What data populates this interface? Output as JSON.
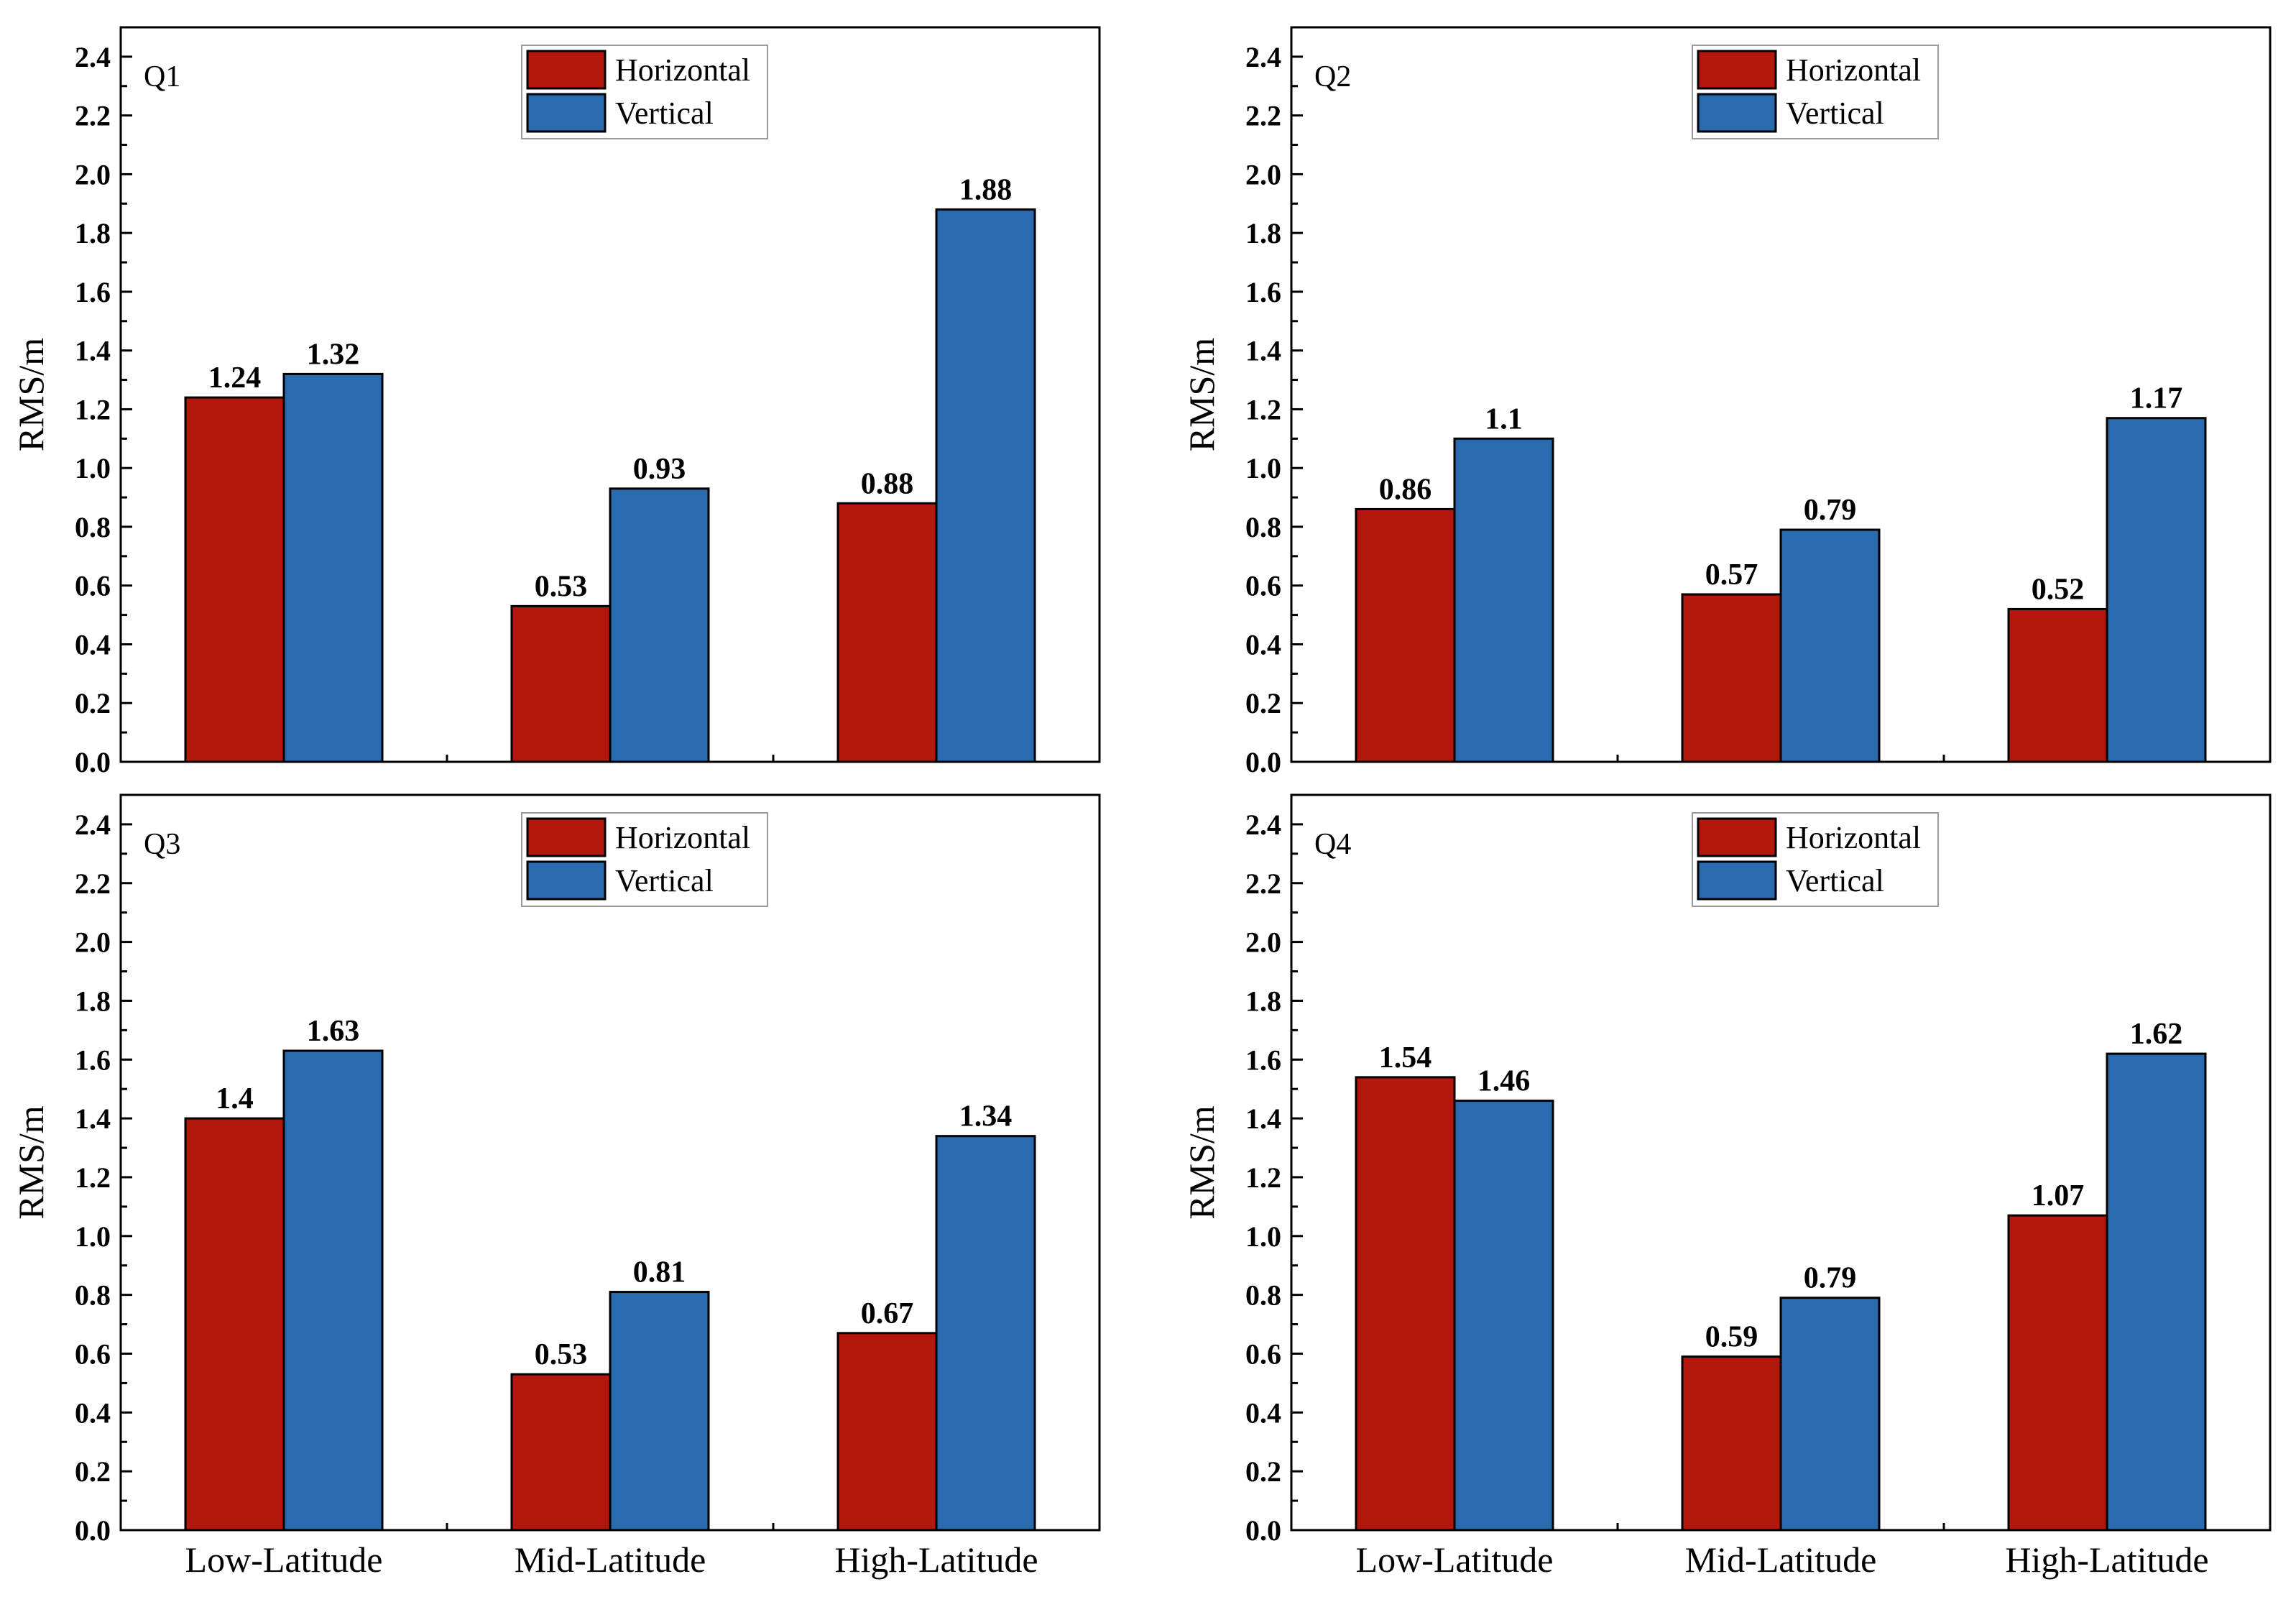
{
  "colors": {
    "horizontal": "#B3170D",
    "vertical": "#2A6AAE"
  },
  "chart_data": [
    {
      "type": "bar",
      "title": "Q1",
      "categories": [
        "Low-Latitude",
        "Mid-Latitude",
        "High-Latitude"
      ],
      "series": [
        {
          "name": "Horizontal",
          "values": [
            1.24,
            0.53,
            0.88
          ]
        },
        {
          "name": "Vertical",
          "values": [
            1.32,
            0.93,
            1.88
          ]
        }
      ],
      "value_labels": [
        [
          "1.24",
          "0.53",
          "0.88"
        ],
        [
          "1.32",
          "0.93",
          "1.88"
        ]
      ],
      "ylabel": "RMS/m",
      "ylim": [
        0,
        2.5
      ],
      "yticks": [
        "0.0",
        "0.2",
        "0.4",
        "0.6",
        "0.8",
        "1.0",
        "1.2",
        "1.4",
        "1.6",
        "1.8",
        "2.0",
        "2.2",
        "2.4"
      ],
      "legend": "top-center",
      "grid": false,
      "show_xticklabels": false
    },
    {
      "type": "bar",
      "title": "Q2",
      "categories": [
        "Low-Latitude",
        "Mid-Latitude",
        "High-Latitude"
      ],
      "series": [
        {
          "name": "Horizontal",
          "values": [
            0.86,
            0.57,
            0.52
          ]
        },
        {
          "name": "Vertical",
          "values": [
            1.1,
            0.79,
            1.17
          ]
        }
      ],
      "value_labels": [
        [
          "0.86",
          "0.57",
          "0.52"
        ],
        [
          "1.1",
          "0.79",
          "1.17"
        ]
      ],
      "ylabel": "RMS/m",
      "ylim": [
        0,
        2.5
      ],
      "yticks": [
        "0.0",
        "0.2",
        "0.4",
        "0.6",
        "0.8",
        "1.0",
        "1.2",
        "1.4",
        "1.6",
        "1.8",
        "2.0",
        "2.2",
        "2.4"
      ],
      "legend": "top-center",
      "grid": false,
      "show_xticklabels": false
    },
    {
      "type": "bar",
      "title": "Q3",
      "categories": [
        "Low-Latitude",
        "Mid-Latitude",
        "High-Latitude"
      ],
      "series": [
        {
          "name": "Horizontal",
          "values": [
            1.4,
            0.53,
            0.67
          ]
        },
        {
          "name": "Vertical",
          "values": [
            1.63,
            0.81,
            1.34
          ]
        }
      ],
      "value_labels": [
        [
          "1.4",
          "0.53",
          "0.67"
        ],
        [
          "1.63",
          "0.81",
          "1.34"
        ]
      ],
      "ylabel": "RMS/m",
      "ylim": [
        0,
        2.5
      ],
      "yticks": [
        "0.0",
        "0.2",
        "0.4",
        "0.6",
        "0.8",
        "1.0",
        "1.2",
        "1.4",
        "1.6",
        "1.8",
        "2.0",
        "2.2",
        "2.4"
      ],
      "legend": "top-center",
      "grid": false,
      "show_xticklabels": true
    },
    {
      "type": "bar",
      "title": "Q4",
      "categories": [
        "Low-Latitude",
        "Mid-Latitude",
        "High-Latitude"
      ],
      "series": [
        {
          "name": "Horizontal",
          "values": [
            1.54,
            0.59,
            1.07
          ]
        },
        {
          "name": "Vertical",
          "values": [
            1.46,
            0.79,
            1.62
          ]
        }
      ],
      "value_labels": [
        [
          "1.54",
          "0.59",
          "1.07"
        ],
        [
          "1.46",
          "0.79",
          "1.62"
        ]
      ],
      "ylabel": "RMS/m",
      "ylim": [
        0,
        2.5
      ],
      "yticks": [
        "0.0",
        "0.2",
        "0.4",
        "0.6",
        "0.8",
        "1.0",
        "1.2",
        "1.4",
        "1.6",
        "1.8",
        "2.0",
        "2.2",
        "2.4"
      ],
      "legend": "top-center",
      "grid": false,
      "show_xticklabels": true
    }
  ]
}
